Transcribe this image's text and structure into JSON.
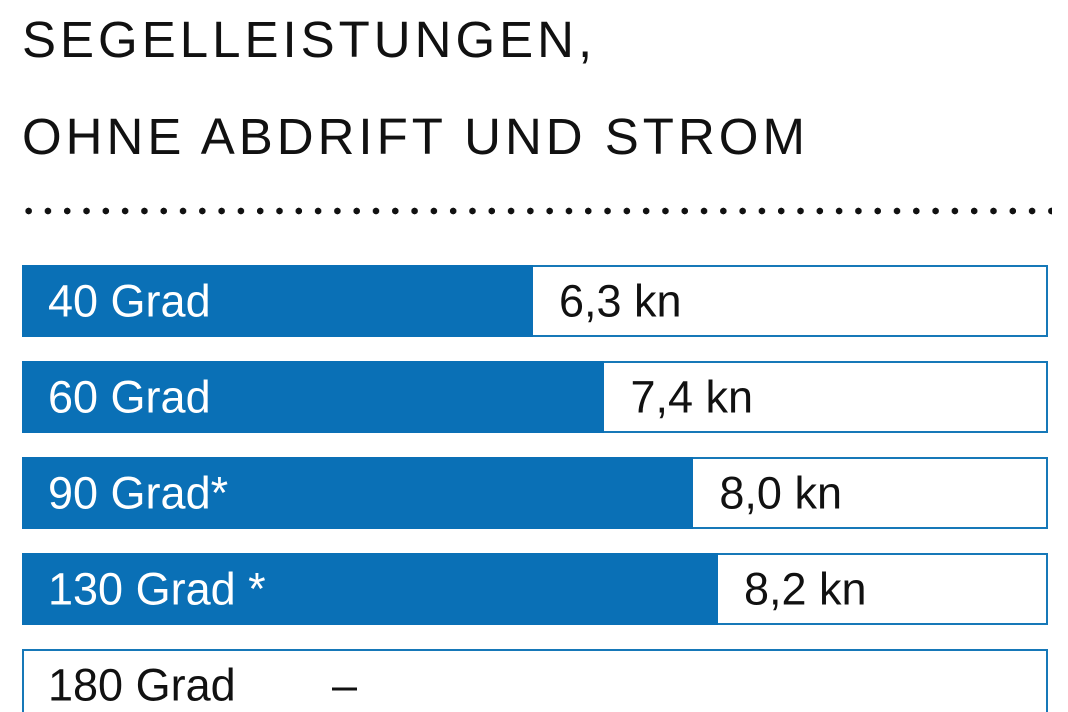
{
  "title": {
    "line1": "SEGELLEISTUNGEN,",
    "line2": "OHNE ABDRIFT UND STROM"
  },
  "colors": {
    "bar_blue": "#0a70b6",
    "border_blue": "#1678b8",
    "text_dark": "#111111",
    "label_white": "#ffffff",
    "background": "#ffffff"
  },
  "chart_data": {
    "type": "bar",
    "orientation": "horizontal",
    "title": "SEGELLEISTUNGEN, OHNE ABDRIFT UND STROM",
    "unit": "kn",
    "categories": [
      "40 Grad",
      "60 Grad",
      "90 Grad*",
      "130 Grad *",
      "180 Grad"
    ],
    "values": [
      6.3,
      7.4,
      8.0,
      8.2,
      null
    ],
    "grid": false,
    "legend": false,
    "rows": [
      {
        "label": "40 Grad",
        "value": 6.3,
        "value_label": "6,3 kn",
        "bar_percent": 49.8
      },
      {
        "label": "60 Grad",
        "value": 7.4,
        "value_label": "7,4 kn",
        "bar_percent": 56.8
      },
      {
        "label": "90 Grad*",
        "value": 8.0,
        "value_label": "8,0 kn",
        "bar_percent": 65.5
      },
      {
        "label": "130 Grad *",
        "value": 8.2,
        "value_label": "8,2 kn",
        "bar_percent": 67.9
      },
      {
        "label": "180 Grad",
        "value": null,
        "value_label": "–",
        "bar_percent": 0
      }
    ]
  }
}
